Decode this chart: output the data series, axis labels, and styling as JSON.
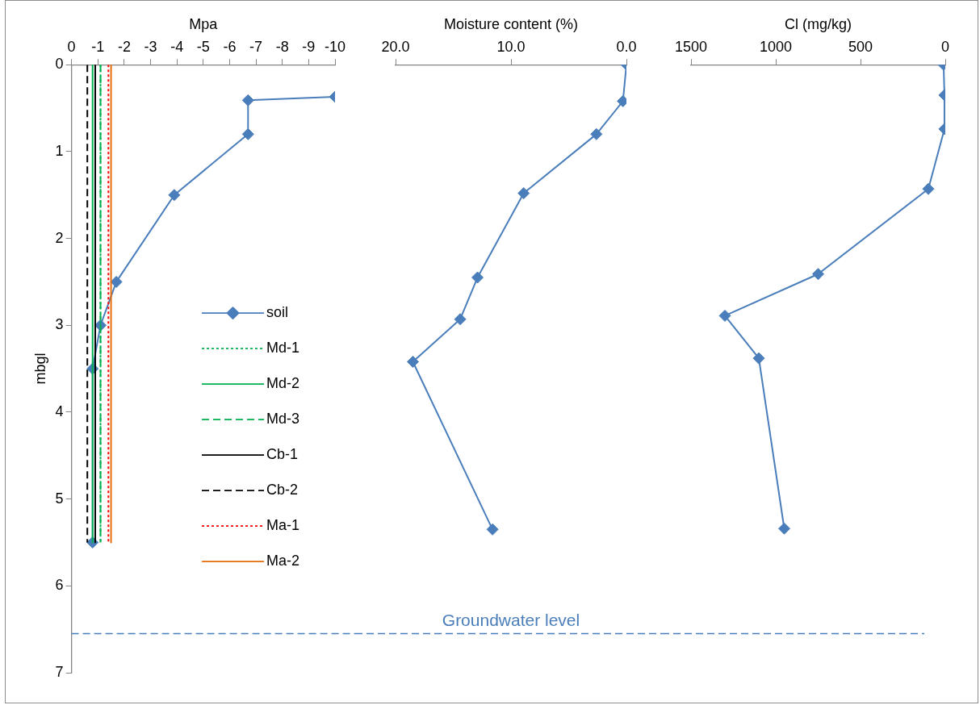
{
  "chart_data": [
    {
      "type": "line",
      "xlabel": "Mpa",
      "ylabel": "mbgl",
      "xlim": [
        0,
        -10
      ],
      "xticks": [
        0,
        -1,
        -2,
        -3,
        -4,
        -5,
        -6,
        -7,
        -8,
        -9,
        -10
      ],
      "ylim": [
        7,
        0
      ],
      "yticks": [
        0,
        1,
        2,
        3,
        4,
        5,
        6,
        7
      ],
      "legend": "right",
      "series": [
        {
          "name": "soil",
          "color": "#4a7ebb",
          "marker": "diamond",
          "line_style": "solid",
          "x": [
            -10,
            -6.7,
            -6.7,
            -3.9,
            -1.7,
            -1.1,
            -0.8,
            -0.8
          ],
          "values": [
            0.37,
            0.41,
            0.8,
            1.5,
            2.5,
            3.0,
            3.5,
            5.5
          ]
        },
        {
          "name": "Md-1",
          "color": "#00b050",
          "marker": "none",
          "line_style": "dotted",
          "x": [
            -1.1,
            -1.1
          ],
          "values": [
            0,
            5.5
          ]
        },
        {
          "name": "Md-2",
          "color": "#00b050",
          "marker": "none",
          "line_style": "solid",
          "x": [
            -0.8,
            -0.8
          ],
          "values": [
            0,
            5.5
          ]
        },
        {
          "name": "Md-3",
          "color": "#00b050",
          "marker": "none",
          "line_style": "dashed",
          "x": [
            -1.1,
            -1.1
          ],
          "values": [
            0,
            5.5
          ]
        },
        {
          "name": "Cb-1",
          "color": "#000000",
          "marker": "none",
          "line_style": "solid",
          "x": [
            -0.9,
            -0.9
          ],
          "values": [
            0,
            5.5
          ]
        },
        {
          "name": "Cb-2",
          "color": "#000000",
          "marker": "none",
          "line_style": "dashed",
          "x": [
            -0.6,
            -0.6
          ],
          "values": [
            0,
            5.5
          ]
        },
        {
          "name": "Ma-1",
          "color": "#ff0000",
          "marker": "none",
          "line_style": "dotted",
          "x": [
            -1.4,
            -1.4
          ],
          "values": [
            0,
            5.5
          ]
        },
        {
          "name": "Ma-2",
          "color": "#e46c0a",
          "marker": "none",
          "line_style": "solid",
          "x": [
            -1.5,
            -1.5
          ],
          "values": [
            0,
            5.5
          ]
        }
      ],
      "ref_lines": [
        {
          "axis": "y",
          "value": 6.55,
          "color": "#4a7ebb",
          "line_style": "dashed"
        }
      ]
    },
    {
      "type": "line",
      "xlabel": "Moisture content (%)",
      "xlim": [
        20,
        0
      ],
      "xticks": [
        {
          "value": 20,
          "label": "20.0"
        },
        {
          "value": 10,
          "label": "10.0"
        },
        {
          "value": 0,
          "label": "0.0"
        }
      ],
      "ylim": [
        7,
        0
      ],
      "tick_labels": "x",
      "series": [
        {
          "color": "#4a7ebb",
          "marker": "diamond",
          "line_style": "solid",
          "x": [
            0,
            0.3,
            2.6,
            8.9,
            12.9,
            14.4,
            18.5,
            11.6
          ],
          "values": [
            0,
            0.42,
            0.8,
            1.48,
            2.45,
            2.93,
            3.42,
            5.35
          ]
        }
      ],
      "ref_lines": [
        {
          "axis": "y",
          "value": 6.55,
          "color": "#4a7ebb",
          "line_style": "dashed",
          "label": "Groundwater level"
        }
      ]
    },
    {
      "type": "line",
      "xlabel": "Cl (mg/kg)",
      "xlim": [
        1500,
        0
      ],
      "xticks": [
        1500,
        1000,
        500,
        0
      ],
      "ylim": [
        7,
        0
      ],
      "tick_labels": "x",
      "series": [
        {
          "color": "#4a7ebb",
          "marker": "diamond",
          "line_style": "solid",
          "x": [
            10,
            5,
            5,
            100,
            750,
            1300,
            1100,
            950
          ],
          "values": [
            0,
            0.35,
            0.74,
            1.43,
            2.41,
            2.89,
            3.38,
            5.34
          ]
        }
      ],
      "ref_lines": [
        {
          "axis": "y",
          "value": 6.55,
          "color": "#4a7ebb",
          "line_style": "dashed"
        }
      ]
    }
  ]
}
